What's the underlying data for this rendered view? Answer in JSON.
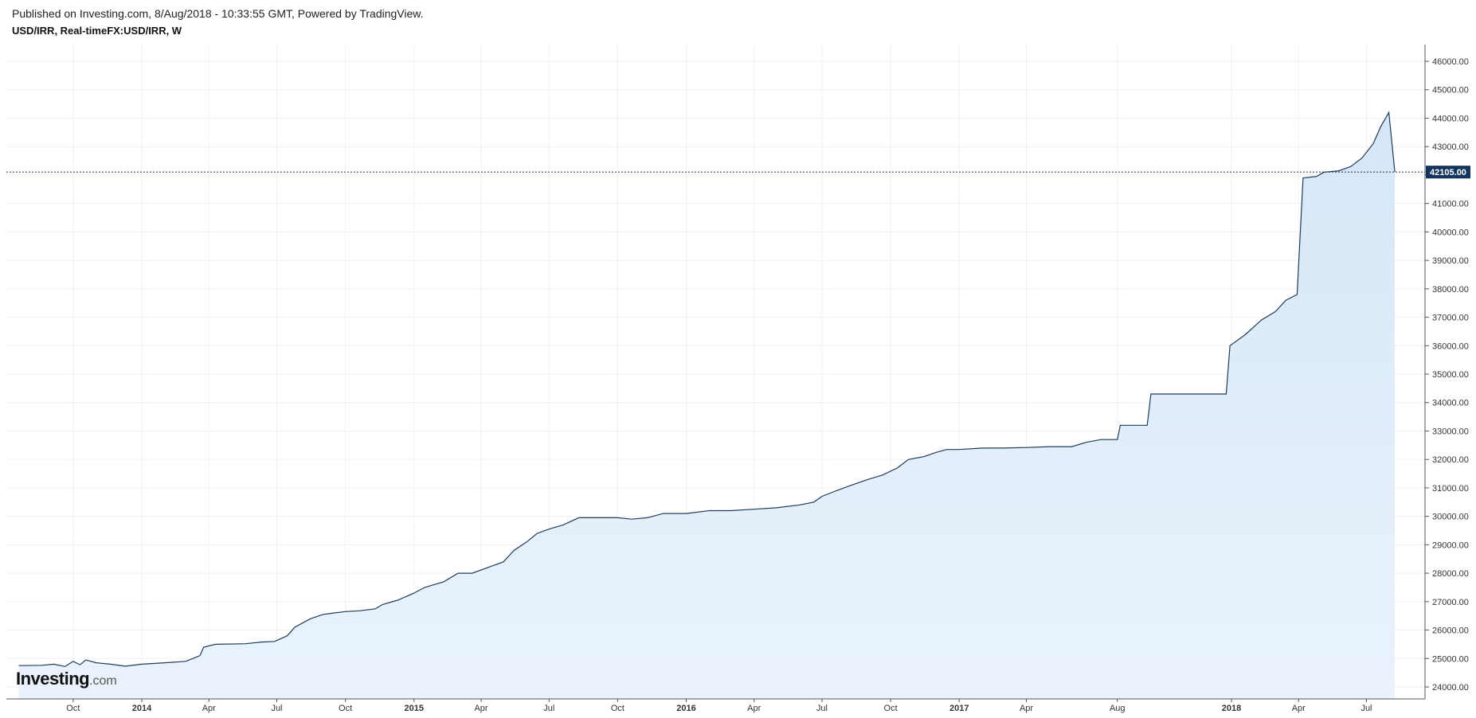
{
  "header": {
    "published": "Published on Investing.com, 8/Aug/2018 - 10:33:55 GMT, Powered by TradingView.",
    "symbol": "USD/IRR, Real-timeFX:USD/IRR, W"
  },
  "logo": {
    "main": "Investing",
    "suffix": ".com"
  },
  "colors": {
    "line": "#1f3b5a",
    "fill": "#d6e6f7",
    "last_label_bg": "#13345c",
    "grid": "#f0f0f0"
  },
  "chart_data": {
    "type": "area",
    "title": "USD/IRR, Real-timeFX:USD/IRR, W",
    "xlabel": "",
    "ylabel": "",
    "ylim": [
      23700,
      46800
    ],
    "y_ticks": [
      24000,
      25000,
      26000,
      27000,
      28000,
      29000,
      30000,
      31000,
      32000,
      33000,
      34000,
      35000,
      36000,
      37000,
      38000,
      39000,
      40000,
      41000,
      42000,
      43000,
      44000,
      45000,
      46000
    ],
    "y_tick_labels": [
      "24000.00",
      "25000.00",
      "26000.00",
      "27000.00",
      "28000.00",
      "29000.00",
      "30000.00",
      "31000.00",
      "32000.00",
      "33000.00",
      "34000.00",
      "35000.00",
      "36000.00",
      "37000.00",
      "38000.00",
      "39000.00",
      "40000.00",
      "41000.00",
      "42000.00",
      "43000.00",
      "44000.00",
      "45000.00",
      "46000.00"
    ],
    "x_ticks": [
      {
        "label": "Oct",
        "date": "2013-10-01",
        "bold": false
      },
      {
        "label": "2014",
        "date": "2014-01-01",
        "bold": true
      },
      {
        "label": "Apr",
        "date": "2014-04-01",
        "bold": false
      },
      {
        "label": "Jul",
        "date": "2014-07-01",
        "bold": false
      },
      {
        "label": "Oct",
        "date": "2014-10-01",
        "bold": false
      },
      {
        "label": "2015",
        "date": "2015-01-01",
        "bold": true
      },
      {
        "label": "Apr",
        "date": "2015-04-01",
        "bold": false
      },
      {
        "label": "Jul",
        "date": "2015-07-01",
        "bold": false
      },
      {
        "label": "Oct",
        "date": "2015-10-01",
        "bold": false
      },
      {
        "label": "2016",
        "date": "2016-01-01",
        "bold": true
      },
      {
        "label": "Apr",
        "date": "2016-04-01",
        "bold": false
      },
      {
        "label": "Jul",
        "date": "2016-07-01",
        "bold": false
      },
      {
        "label": "Oct",
        "date": "2016-10-01",
        "bold": false
      },
      {
        "label": "2017",
        "date": "2017-01-01",
        "bold": true
      },
      {
        "label": "Apr",
        "date": "2017-04-01",
        "bold": false
      },
      {
        "label": "Aug",
        "date": "2017-08-01",
        "bold": false
      },
      {
        "label": "2018",
        "date": "2018-01-01",
        "bold": true
      },
      {
        "label": "Apr",
        "date": "2018-04-01",
        "bold": false
      },
      {
        "label": "Jul",
        "date": "2018-07-01",
        "bold": false
      }
    ],
    "last_value": 42105,
    "last_value_label": "42105.00",
    "grid": true,
    "series": [
      {
        "points": [
          [
            "2013-07-20",
            24750
          ],
          [
            "2013-08-20",
            24760
          ],
          [
            "2013-09-05",
            24800
          ],
          [
            "2013-09-20",
            24720
          ],
          [
            "2013-10-01",
            24900
          ],
          [
            "2013-10-10",
            24780
          ],
          [
            "2013-10-18",
            24950
          ],
          [
            "2013-11-01",
            24850
          ],
          [
            "2013-11-20",
            24800
          ],
          [
            "2013-12-10",
            24730
          ],
          [
            "2014-01-01",
            24800
          ],
          [
            "2014-02-01",
            24850
          ],
          [
            "2014-03-01",
            24900
          ],
          [
            "2014-03-20",
            25100
          ],
          [
            "2014-03-25",
            25400
          ],
          [
            "2014-04-10",
            25500
          ],
          [
            "2014-05-20",
            25520
          ],
          [
            "2014-06-10",
            25580
          ],
          [
            "2014-06-28",
            25600
          ],
          [
            "2014-07-15",
            25800
          ],
          [
            "2014-07-25",
            26100
          ],
          [
            "2014-08-15",
            26400
          ],
          [
            "2014-09-01",
            26550
          ],
          [
            "2014-09-15",
            26600
          ],
          [
            "2014-10-01",
            26650
          ],
          [
            "2014-10-20",
            26680
          ],
          [
            "2014-11-10",
            26750
          ],
          [
            "2014-11-20",
            26900
          ],
          [
            "2014-12-10",
            27050
          ],
          [
            "2015-01-01",
            27300
          ],
          [
            "2015-01-15",
            27500
          ],
          [
            "2015-02-10",
            27700
          ],
          [
            "2015-03-01",
            28000
          ],
          [
            "2015-03-20",
            28000
          ],
          [
            "2015-04-10",
            28200
          ],
          [
            "2015-05-01",
            28400
          ],
          [
            "2015-05-15",
            28800
          ],
          [
            "2015-06-01",
            29100
          ],
          [
            "2015-06-15",
            29400
          ],
          [
            "2015-07-01",
            29550
          ],
          [
            "2015-07-20",
            29700
          ],
          [
            "2015-08-10",
            29950
          ],
          [
            "2015-09-01",
            29950
          ],
          [
            "2015-10-01",
            29950
          ],
          [
            "2015-10-20",
            29900
          ],
          [
            "2015-11-10",
            29950
          ],
          [
            "2015-12-01",
            30100
          ],
          [
            "2016-01-01",
            30100
          ],
          [
            "2016-02-01",
            30200
          ],
          [
            "2016-03-01",
            30200
          ],
          [
            "2016-04-01",
            30250
          ],
          [
            "2016-05-01",
            30300
          ],
          [
            "2016-06-01",
            30400
          ],
          [
            "2016-06-20",
            30500
          ],
          [
            "2016-07-01",
            30700
          ],
          [
            "2016-07-20",
            30900
          ],
          [
            "2016-08-10",
            31100
          ],
          [
            "2016-09-01",
            31300
          ],
          [
            "2016-09-20",
            31450
          ],
          [
            "2016-10-10",
            31700
          ],
          [
            "2016-10-25",
            32000
          ],
          [
            "2016-11-15",
            32100
          ],
          [
            "2016-12-01",
            32250
          ],
          [
            "2016-12-15",
            32350
          ],
          [
            "2017-01-01",
            32350
          ],
          [
            "2017-02-01",
            32400
          ],
          [
            "2017-03-01",
            32400
          ],
          [
            "2017-04-01",
            32420
          ],
          [
            "2017-05-01",
            32450
          ],
          [
            "2017-06-01",
            32450
          ],
          [
            "2017-06-20",
            32600
          ],
          [
            "2017-07-10",
            32700
          ],
          [
            "2017-08-01",
            32700
          ],
          [
            "2017-08-05",
            33200
          ],
          [
            "2017-09-10",
            33200
          ],
          [
            "2017-09-15",
            34300
          ],
          [
            "2017-12-25",
            34300
          ],
          [
            "2017-12-30",
            36000
          ],
          [
            "2018-01-20",
            36400
          ],
          [
            "2018-02-10",
            36900
          ],
          [
            "2018-03-01",
            37200
          ],
          [
            "2018-03-15",
            37600
          ],
          [
            "2018-03-30",
            37800
          ],
          [
            "2018-04-07",
            41900
          ],
          [
            "2018-04-25",
            41950
          ],
          [
            "2018-05-05",
            42100
          ],
          [
            "2018-05-25",
            42150
          ],
          [
            "2018-06-10",
            42300
          ],
          [
            "2018-06-25",
            42600
          ],
          [
            "2018-07-10",
            43100
          ],
          [
            "2018-07-20",
            43700
          ],
          [
            "2018-07-31",
            44200
          ],
          [
            "2018-08-08",
            42105
          ]
        ]
      }
    ]
  }
}
